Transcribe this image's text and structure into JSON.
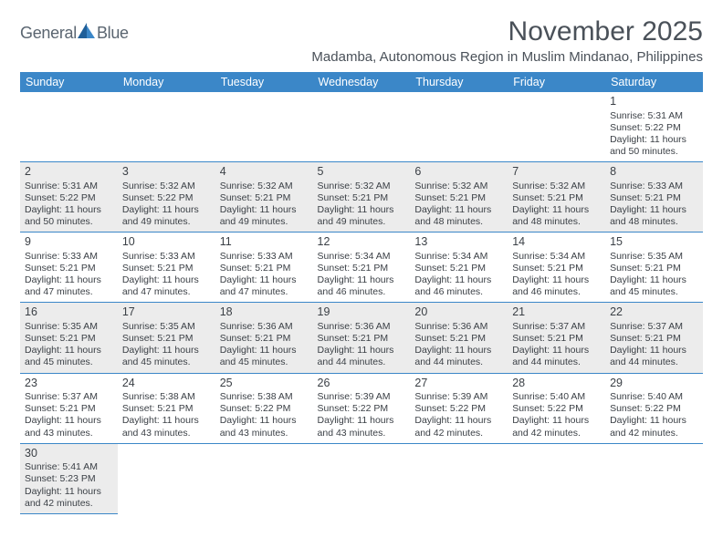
{
  "brand": {
    "word1": "General",
    "word2": "Blue"
  },
  "logo_colors": {
    "dark": "#1f5f99",
    "light": "#3b87c8"
  },
  "header_bg": "#3b87c8",
  "title": "November 2025",
  "subtitle": "Madamba, Autonomous Region in Muslim Mindanao, Philippines",
  "day_headers": [
    "Sunday",
    "Monday",
    "Tuesday",
    "Wednesday",
    "Thursday",
    "Friday",
    "Saturday"
  ],
  "weeks": [
    {
      "shaded": false,
      "days": [
        {
          "blank": true
        },
        {
          "blank": true
        },
        {
          "blank": true
        },
        {
          "blank": true
        },
        {
          "blank": true
        },
        {
          "blank": true
        },
        {
          "num": "1",
          "sunrise": "Sunrise: 5:31 AM",
          "sunset": "Sunset: 5:22 PM",
          "daylight": "Daylight: 11 hours and 50 minutes."
        }
      ]
    },
    {
      "shaded": true,
      "days": [
        {
          "num": "2",
          "sunrise": "Sunrise: 5:31 AM",
          "sunset": "Sunset: 5:22 PM",
          "daylight": "Daylight: 11 hours and 50 minutes."
        },
        {
          "num": "3",
          "sunrise": "Sunrise: 5:32 AM",
          "sunset": "Sunset: 5:22 PM",
          "daylight": "Daylight: 11 hours and 49 minutes."
        },
        {
          "num": "4",
          "sunrise": "Sunrise: 5:32 AM",
          "sunset": "Sunset: 5:21 PM",
          "daylight": "Daylight: 11 hours and 49 minutes."
        },
        {
          "num": "5",
          "sunrise": "Sunrise: 5:32 AM",
          "sunset": "Sunset: 5:21 PM",
          "daylight": "Daylight: 11 hours and 49 minutes."
        },
        {
          "num": "6",
          "sunrise": "Sunrise: 5:32 AM",
          "sunset": "Sunset: 5:21 PM",
          "daylight": "Daylight: 11 hours and 48 minutes."
        },
        {
          "num": "7",
          "sunrise": "Sunrise: 5:32 AM",
          "sunset": "Sunset: 5:21 PM",
          "daylight": "Daylight: 11 hours and 48 minutes."
        },
        {
          "num": "8",
          "sunrise": "Sunrise: 5:33 AM",
          "sunset": "Sunset: 5:21 PM",
          "daylight": "Daylight: 11 hours and 48 minutes."
        }
      ]
    },
    {
      "shaded": false,
      "days": [
        {
          "num": "9",
          "sunrise": "Sunrise: 5:33 AM",
          "sunset": "Sunset: 5:21 PM",
          "daylight": "Daylight: 11 hours and 47 minutes."
        },
        {
          "num": "10",
          "sunrise": "Sunrise: 5:33 AM",
          "sunset": "Sunset: 5:21 PM",
          "daylight": "Daylight: 11 hours and 47 minutes."
        },
        {
          "num": "11",
          "sunrise": "Sunrise: 5:33 AM",
          "sunset": "Sunset: 5:21 PM",
          "daylight": "Daylight: 11 hours and 47 minutes."
        },
        {
          "num": "12",
          "sunrise": "Sunrise: 5:34 AM",
          "sunset": "Sunset: 5:21 PM",
          "daylight": "Daylight: 11 hours and 46 minutes."
        },
        {
          "num": "13",
          "sunrise": "Sunrise: 5:34 AM",
          "sunset": "Sunset: 5:21 PM",
          "daylight": "Daylight: 11 hours and 46 minutes."
        },
        {
          "num": "14",
          "sunrise": "Sunrise: 5:34 AM",
          "sunset": "Sunset: 5:21 PM",
          "daylight": "Daylight: 11 hours and 46 minutes."
        },
        {
          "num": "15",
          "sunrise": "Sunrise: 5:35 AM",
          "sunset": "Sunset: 5:21 PM",
          "daylight": "Daylight: 11 hours and 45 minutes."
        }
      ]
    },
    {
      "shaded": true,
      "days": [
        {
          "num": "16",
          "sunrise": "Sunrise: 5:35 AM",
          "sunset": "Sunset: 5:21 PM",
          "daylight": "Daylight: 11 hours and 45 minutes."
        },
        {
          "num": "17",
          "sunrise": "Sunrise: 5:35 AM",
          "sunset": "Sunset: 5:21 PM",
          "daylight": "Daylight: 11 hours and 45 minutes."
        },
        {
          "num": "18",
          "sunrise": "Sunrise: 5:36 AM",
          "sunset": "Sunset: 5:21 PM",
          "daylight": "Daylight: 11 hours and 45 minutes."
        },
        {
          "num": "19",
          "sunrise": "Sunrise: 5:36 AM",
          "sunset": "Sunset: 5:21 PM",
          "daylight": "Daylight: 11 hours and 44 minutes."
        },
        {
          "num": "20",
          "sunrise": "Sunrise: 5:36 AM",
          "sunset": "Sunset: 5:21 PM",
          "daylight": "Daylight: 11 hours and 44 minutes."
        },
        {
          "num": "21",
          "sunrise": "Sunrise: 5:37 AM",
          "sunset": "Sunset: 5:21 PM",
          "daylight": "Daylight: 11 hours and 44 minutes."
        },
        {
          "num": "22",
          "sunrise": "Sunrise: 5:37 AM",
          "sunset": "Sunset: 5:21 PM",
          "daylight": "Daylight: 11 hours and 44 minutes."
        }
      ]
    },
    {
      "shaded": false,
      "days": [
        {
          "num": "23",
          "sunrise": "Sunrise: 5:37 AM",
          "sunset": "Sunset: 5:21 PM",
          "daylight": "Daylight: 11 hours and 43 minutes."
        },
        {
          "num": "24",
          "sunrise": "Sunrise: 5:38 AM",
          "sunset": "Sunset: 5:21 PM",
          "daylight": "Daylight: 11 hours and 43 minutes."
        },
        {
          "num": "25",
          "sunrise": "Sunrise: 5:38 AM",
          "sunset": "Sunset: 5:22 PM",
          "daylight": "Daylight: 11 hours and 43 minutes."
        },
        {
          "num": "26",
          "sunrise": "Sunrise: 5:39 AM",
          "sunset": "Sunset: 5:22 PM",
          "daylight": "Daylight: 11 hours and 43 minutes."
        },
        {
          "num": "27",
          "sunrise": "Sunrise: 5:39 AM",
          "sunset": "Sunset: 5:22 PM",
          "daylight": "Daylight: 11 hours and 42 minutes."
        },
        {
          "num": "28",
          "sunrise": "Sunrise: 5:40 AM",
          "sunset": "Sunset: 5:22 PM",
          "daylight": "Daylight: 11 hours and 42 minutes."
        },
        {
          "num": "29",
          "sunrise": "Sunrise: 5:40 AM",
          "sunset": "Sunset: 5:22 PM",
          "daylight": "Daylight: 11 hours and 42 minutes."
        }
      ]
    },
    {
      "shaded": true,
      "last": true,
      "days": [
        {
          "num": "30",
          "sunrise": "Sunrise: 5:41 AM",
          "sunset": "Sunset: 5:23 PM",
          "daylight": "Daylight: 11 hours and 42 minutes."
        },
        {
          "blank": true,
          "trailing": true
        },
        {
          "blank": true,
          "trailing": true
        },
        {
          "blank": true,
          "trailing": true
        },
        {
          "blank": true,
          "trailing": true
        },
        {
          "blank": true,
          "trailing": true
        },
        {
          "blank": true,
          "trailing": true
        }
      ]
    }
  ]
}
